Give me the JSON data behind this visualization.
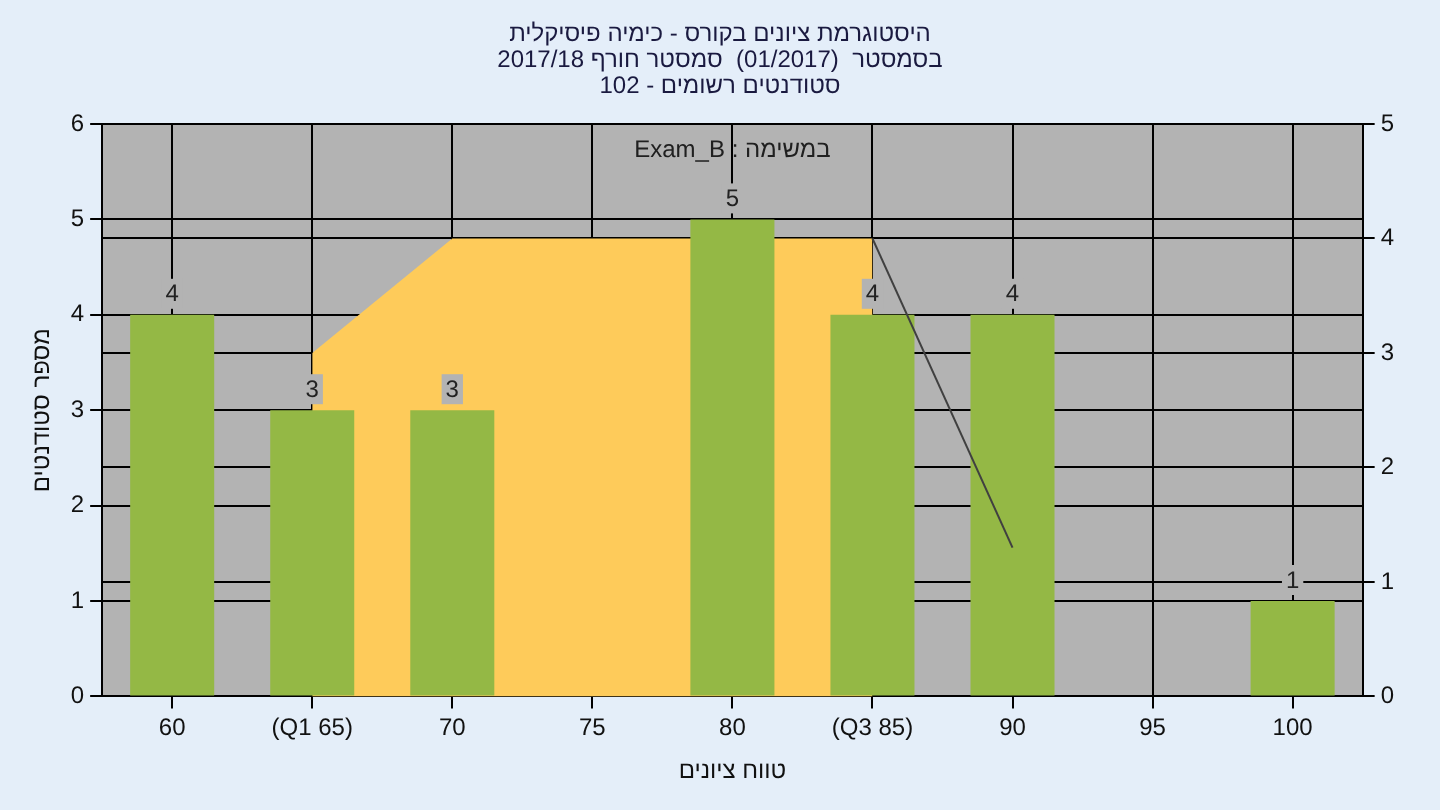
{
  "chart_data": {
    "type": "bar",
    "title": "היסטוגרמת ציונים בקורס - כימיה פיסיקלית",
    "subtitle": "בסמסטר  (01/2017)  סמסטר חורף 2017/18\nסטודנטים רשומים - 102",
    "xlabel": "טווח ציונים",
    "ylabel": "מספר סטודנטים",
    "annotations": [
      "במשימה : Exam_B"
    ],
    "categories": [
      "60",
      "(Q1 65)",
      "70",
      "75",
      "80",
      "(Q3 85)",
      "90",
      "95",
      "100"
    ],
    "series": [
      {
        "color": "#94b845",
        "values": [
          4,
          3,
          3,
          null,
          5,
          4,
          4,
          null,
          1
        ],
        "value_labels": [
          "4",
          "3",
          "3",
          null,
          "5",
          "4",
          "4",
          null,
          "1"
        ]
      },
      {
        "type": "area",
        "axis": "y2",
        "color": "#fecb5a",
        "values": [
          null,
          3,
          4,
          4,
          null,
          4,
          null,
          null,
          null
        ]
      },
      {
        "type": "line",
        "axis": "y2",
        "color": "#404040",
        "values": [
          null,
          null,
          null,
          null,
          null,
          4,
          1.3,
          null,
          null
        ]
      }
    ],
    "ylim": [
      0,
      6
    ],
    "yticks": [
      0,
      1,
      2,
      3,
      4,
      5,
      6
    ],
    "y2lim": [
      0,
      5
    ],
    "y2ticks": [
      0,
      1,
      2,
      3,
      4,
      5
    ],
    "grid": true,
    "legend": false
  }
}
